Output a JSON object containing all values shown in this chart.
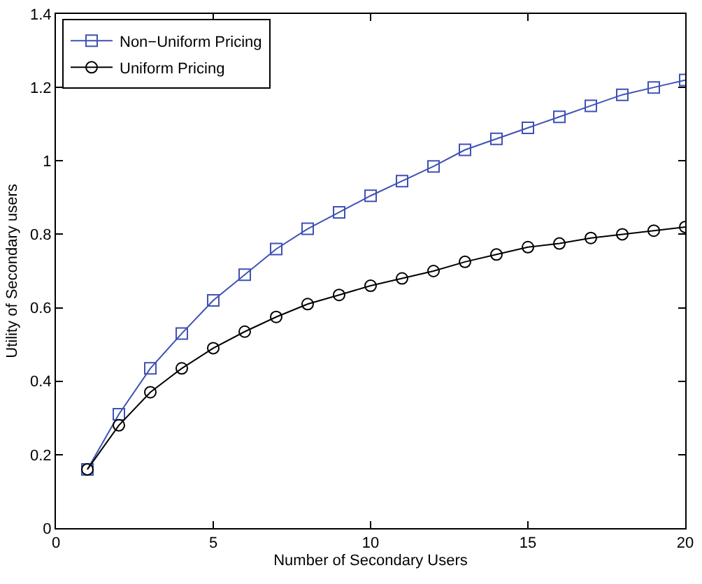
{
  "chart_data": {
    "type": "line",
    "xlabel": "Number of Secondary Users",
    "ylabel": "Utility of Secondary users",
    "x": [
      1,
      2,
      3,
      4,
      5,
      6,
      7,
      8,
      9,
      10,
      11,
      12,
      13,
      14,
      15,
      16,
      17,
      18,
      19,
      20
    ],
    "series": [
      {
        "name": "Non−Uniform Pricing",
        "color": "#3f51b5",
        "marker": "square",
        "values": [
          0.16,
          0.31,
          0.435,
          0.53,
          0.62,
          0.69,
          0.76,
          0.815,
          0.86,
          0.905,
          0.945,
          0.985,
          1.03,
          1.06,
          1.09,
          1.12,
          1.15,
          1.18,
          1.2,
          1.22
        ]
      },
      {
        "name": "Uniform Pricing",
        "color": "#000000",
        "marker": "circle",
        "values": [
          0.16,
          0.28,
          0.37,
          0.435,
          0.49,
          0.535,
          0.575,
          0.61,
          0.635,
          0.66,
          0.68,
          0.7,
          0.725,
          0.745,
          0.765,
          0.775,
          0.79,
          0.8,
          0.81,
          0.82
        ]
      }
    ],
    "xlim": [
      0,
      20
    ],
    "xticks": [
      0,
      5,
      10,
      15,
      20
    ],
    "ylim": [
      0,
      1.4
    ],
    "yticks": [
      0,
      0.2,
      0.4,
      0.6,
      0.8,
      1,
      1.2,
      1.4
    ],
    "grid": false,
    "legend": "top left",
    "line_style": "solid"
  }
}
